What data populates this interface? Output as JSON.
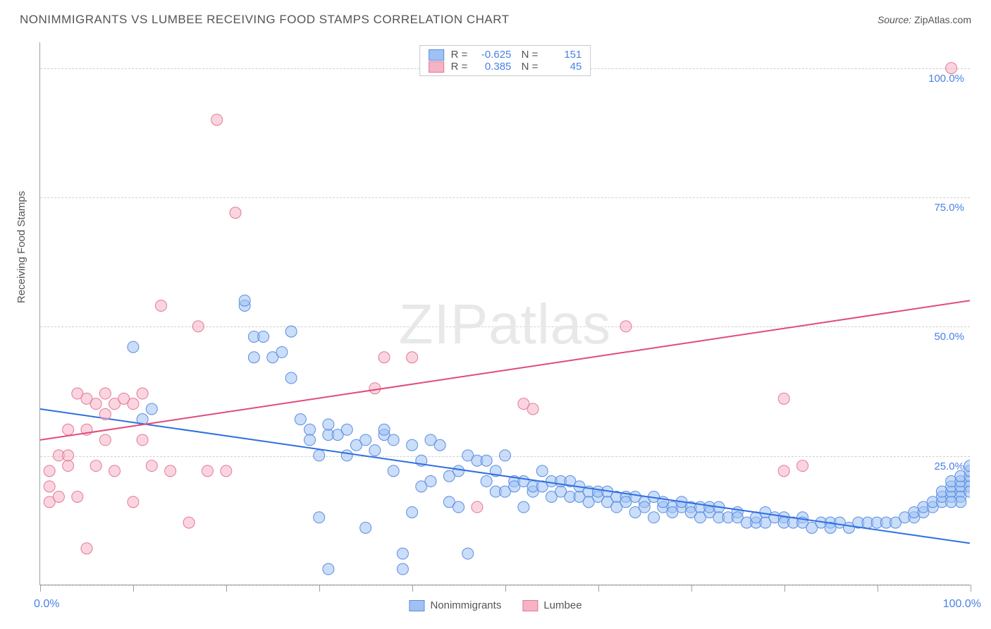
{
  "header": {
    "title": "NONIMMIGRANTS VS LUMBEE RECEIVING FOOD STAMPS CORRELATION CHART",
    "source_label": "Source:",
    "source_value": "ZipAtlas.com"
  },
  "watermark": "ZIPatlas",
  "chart": {
    "type": "scatter",
    "background_color": "#ffffff",
    "grid_color": "#d0d0d0",
    "axis_color": "#9aa0a6",
    "ylabel": "Receiving Food Stamps",
    "label_color": "#555555",
    "tick_label_color": "#4a80e8",
    "tick_label_fontsize": 15,
    "xlim": [
      0,
      100
    ],
    "ylim": [
      0,
      105
    ],
    "x_ticks": [
      0,
      10,
      20,
      30,
      40,
      50,
      60,
      70,
      80,
      90,
      100
    ],
    "x_tick_labels": {
      "0": "0.0%",
      "100": "100.0%"
    },
    "y_gridlines": [
      0,
      25,
      50,
      75,
      100
    ],
    "y_tick_labels": {
      "25": "25.0%",
      "50": "50.0%",
      "75": "75.0%",
      "100": "100.0%"
    },
    "series": [
      {
        "name": "Nonimmigrants",
        "color_fill": "#9fc1f4",
        "color_stroke": "#5a8de0",
        "fill_opacity": 0.55,
        "marker_radius": 8,
        "R": "-0.625",
        "N": "151",
        "trendline": {
          "x1": 0,
          "y1": 34,
          "x2": 100,
          "y2": 8,
          "color": "#2e6fe0",
          "width": 2
        },
        "points": [
          [
            10,
            46
          ],
          [
            11,
            32
          ],
          [
            12,
            34
          ],
          [
            22,
            54
          ],
          [
            22,
            55
          ],
          [
            23,
            44
          ],
          [
            23,
            48
          ],
          [
            24,
            48
          ],
          [
            25,
            44
          ],
          [
            26,
            45
          ],
          [
            27,
            40
          ],
          [
            27,
            49
          ],
          [
            28,
            32
          ],
          [
            29,
            30
          ],
          [
            29,
            28
          ],
          [
            30,
            25
          ],
          [
            30,
            13
          ],
          [
            31,
            29
          ],
          [
            31,
            31
          ],
          [
            31,
            3
          ],
          [
            32,
            29
          ],
          [
            33,
            25
          ],
          [
            33,
            30
          ],
          [
            34,
            27
          ],
          [
            35,
            28
          ],
          [
            35,
            11
          ],
          [
            36,
            26
          ],
          [
            37,
            29
          ],
          [
            37,
            30
          ],
          [
            38,
            28
          ],
          [
            38,
            22
          ],
          [
            39,
            6
          ],
          [
            39,
            3
          ],
          [
            40,
            27
          ],
          [
            40,
            14
          ],
          [
            41,
            24
          ],
          [
            41,
            19
          ],
          [
            42,
            28
          ],
          [
            42,
            20
          ],
          [
            43,
            27
          ],
          [
            44,
            21
          ],
          [
            44,
            16
          ],
          [
            45,
            15
          ],
          [
            45,
            22
          ],
          [
            46,
            25
          ],
          [
            46,
            6
          ],
          [
            47,
            24
          ],
          [
            48,
            20
          ],
          [
            48,
            24
          ],
          [
            49,
            18
          ],
          [
            49,
            22
          ],
          [
            50,
            25
          ],
          [
            50,
            18
          ],
          [
            51,
            20
          ],
          [
            51,
            19
          ],
          [
            52,
            20
          ],
          [
            52,
            15
          ],
          [
            53,
            18
          ],
          [
            53,
            19
          ],
          [
            54,
            22
          ],
          [
            54,
            19
          ],
          [
            55,
            20
          ],
          [
            55,
            17
          ],
          [
            56,
            18
          ],
          [
            56,
            20
          ],
          [
            57,
            20
          ],
          [
            57,
            17
          ],
          [
            58,
            17
          ],
          [
            58,
            19
          ],
          [
            59,
            18
          ],
          [
            59,
            16
          ],
          [
            60,
            17
          ],
          [
            60,
            18
          ],
          [
            61,
            18
          ],
          [
            61,
            16
          ],
          [
            62,
            17
          ],
          [
            62,
            15
          ],
          [
            63,
            17
          ],
          [
            63,
            16
          ],
          [
            64,
            17
          ],
          [
            64,
            14
          ],
          [
            65,
            16
          ],
          [
            65,
            15
          ],
          [
            66,
            17
          ],
          [
            66,
            13
          ],
          [
            67,
            15
          ],
          [
            67,
            16
          ],
          [
            68,
            15
          ],
          [
            68,
            14
          ],
          [
            69,
            15
          ],
          [
            69,
            16
          ],
          [
            70,
            15
          ],
          [
            70,
            14
          ],
          [
            71,
            15
          ],
          [
            71,
            13
          ],
          [
            72,
            14
          ],
          [
            72,
            15
          ],
          [
            73,
            15
          ],
          [
            73,
            13
          ],
          [
            74,
            13
          ],
          [
            75,
            14
          ],
          [
            75,
            13
          ],
          [
            76,
            12
          ],
          [
            77,
            12
          ],
          [
            77,
            13
          ],
          [
            78,
            14
          ],
          [
            78,
            12
          ],
          [
            79,
            13
          ],
          [
            80,
            13
          ],
          [
            80,
            12
          ],
          [
            81,
            12
          ],
          [
            82,
            13
          ],
          [
            82,
            12
          ],
          [
            83,
            11
          ],
          [
            84,
            12
          ],
          [
            85,
            12
          ],
          [
            85,
            11
          ],
          [
            86,
            12
          ],
          [
            87,
            11
          ],
          [
            88,
            12
          ],
          [
            89,
            12
          ],
          [
            90,
            12
          ],
          [
            91,
            12
          ],
          [
            92,
            12
          ],
          [
            93,
            13
          ],
          [
            94,
            13
          ],
          [
            94,
            14
          ],
          [
            95,
            14
          ],
          [
            95,
            15
          ],
          [
            96,
            15
          ],
          [
            96,
            16
          ],
          [
            97,
            16
          ],
          [
            97,
            17
          ],
          [
            97,
            18
          ],
          [
            98,
            17
          ],
          [
            98,
            18
          ],
          [
            98,
            19
          ],
          [
            98,
            20
          ],
          [
            99,
            18
          ],
          [
            99,
            19
          ],
          [
            99,
            20
          ],
          [
            99,
            21
          ],
          [
            99,
            17
          ],
          [
            100,
            20
          ],
          [
            100,
            21
          ],
          [
            100,
            19
          ],
          [
            100,
            18
          ],
          [
            100,
            22
          ],
          [
            100,
            23
          ],
          [
            99,
            16
          ],
          [
            98,
            16
          ]
        ]
      },
      {
        "name": "Lumbee",
        "color_fill": "#f5b3c4",
        "color_stroke": "#e57797",
        "fill_opacity": 0.55,
        "marker_radius": 8,
        "R": "0.385",
        "N": "45",
        "trendline": {
          "x1": 0,
          "y1": 28,
          "x2": 100,
          "y2": 55,
          "color": "#e04c7a",
          "width": 2
        },
        "points": [
          [
            1,
            22
          ],
          [
            1,
            16
          ],
          [
            1,
            19
          ],
          [
            2,
            25
          ],
          [
            2,
            17
          ],
          [
            3,
            23
          ],
          [
            3,
            25
          ],
          [
            3,
            30
          ],
          [
            4,
            37
          ],
          [
            4,
            17
          ],
          [
            5,
            36
          ],
          [
            5,
            30
          ],
          [
            5,
            7
          ],
          [
            6,
            35
          ],
          [
            6,
            23
          ],
          [
            7,
            33
          ],
          [
            7,
            28
          ],
          [
            7,
            37
          ],
          [
            8,
            35
          ],
          [
            8,
            22
          ],
          [
            9,
            36
          ],
          [
            10,
            16
          ],
          [
            10,
            35
          ],
          [
            11,
            28
          ],
          [
            11,
            37
          ],
          [
            12,
            23
          ],
          [
            13,
            54
          ],
          [
            14,
            22
          ],
          [
            16,
            12
          ],
          [
            17,
            50
          ],
          [
            18,
            22
          ],
          [
            19,
            90
          ],
          [
            20,
            22
          ],
          [
            21,
            72
          ],
          [
            36,
            38
          ],
          [
            37,
            44
          ],
          [
            40,
            44
          ],
          [
            47,
            15
          ],
          [
            52,
            35
          ],
          [
            53,
            34
          ],
          [
            63,
            50
          ],
          [
            80,
            36
          ],
          [
            80,
            22
          ],
          [
            82,
            23
          ],
          [
            98,
            100
          ]
        ]
      }
    ],
    "legend_top": {
      "border_color": "#c8c8c8",
      "text_color": "#555555",
      "value_color": "#4a80e8"
    },
    "legend_bottom": [
      {
        "label": "Nonimmigrants",
        "fill": "#9fc1f4",
        "stroke": "#5a8de0"
      },
      {
        "label": "Lumbee",
        "fill": "#f5b3c4",
        "stroke": "#e57797"
      }
    ]
  }
}
